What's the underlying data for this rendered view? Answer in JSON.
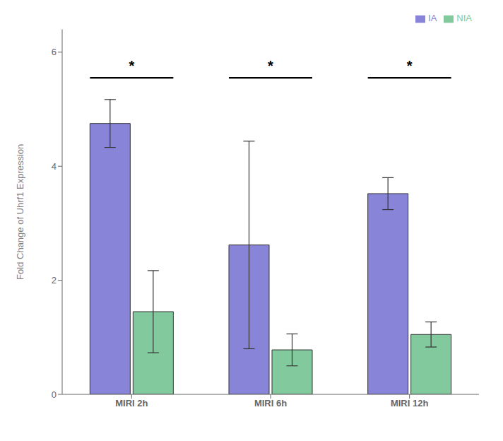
{
  "chart_data": {
    "type": "bar",
    "categories": [
      "MIRI 2h",
      "MIRI 6h",
      "MIRI 12h"
    ],
    "series": [
      {
        "name": "IA",
        "values": [
          4.75,
          2.62,
          3.52
        ],
        "errors": [
          0.42,
          1.82,
          0.28
        ]
      },
      {
        "name": "NIA",
        "values": [
          1.45,
          0.78,
          1.05
        ],
        "errors": [
          0.72,
          0.28,
          0.22
        ]
      }
    ],
    "ylabel": "Fold Change of Uhrf1 Expression",
    "ylim": [
      0,
      6.4
    ],
    "yticks": [
      0,
      2,
      4,
      6
    ],
    "grid": false,
    "legend": "upper right",
    "annotations": [
      {
        "category": "MIRI 2h",
        "text": "*",
        "y": 5.82,
        "bracket_y": 5.55
      },
      {
        "category": "MIRI 6h",
        "text": "*",
        "y": 5.82,
        "bracket_y": 5.55
      },
      {
        "category": "MIRI 12h",
        "text": "*",
        "y": 5.82,
        "bracket_y": 5.55
      }
    ]
  }
}
